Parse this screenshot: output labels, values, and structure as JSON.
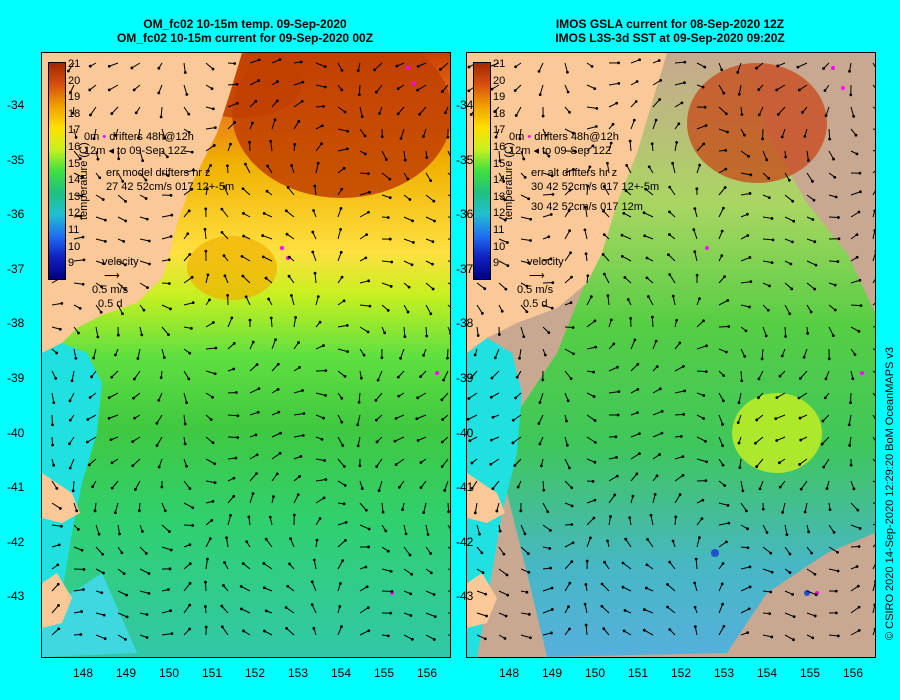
{
  "titles": {
    "left_line1": "OM_fc02 10-15m temp. 09-Sep-2020",
    "left_line2": "OM_fc02 10-15m current for 09-Sep-2020 00Z",
    "right_line1": "IMOS GSLA current for 08-Sep-2020 12Z",
    "right_line2": "IMOS L3S-3d SST at 09-Sep-2020 09:20Z"
  },
  "colorbar": {
    "label": "temperature (C)",
    "ticks": [
      "21",
      "20",
      "19",
      "18",
      "17",
      "16",
      "15",
      "14",
      "13",
      "12",
      "11",
      "10",
      "9"
    ]
  },
  "left_legend": {
    "drifters": "drifters 48h@12h",
    "to_date": "to 09-Sep 12Z",
    "depth_top": "0m",
    "depth_bottom": "12m",
    "err_title": "err model drifters hr z",
    "err_line": "27 42 52cm/s 017 12+-5m"
  },
  "right_legend": {
    "drifters": "drifters 48h@12h",
    "to_date": "to 09-Sep 12Z",
    "depth_top": "0m",
    "depth_bottom": "12m",
    "err_title": "err alt drifters hr z",
    "err_line1": "30 42 52cm/s 017 12+-5m",
    "err_line2": "30 42 52cm/s 017 12m"
  },
  "velocity_legend": {
    "label": "velocity",
    "speed": "0.5 m/s",
    "days": "0.5 d"
  },
  "lat_ticks": [
    "-34",
    "-35",
    "-36",
    "-37",
    "-38",
    "-39",
    "-40",
    "-41",
    "-42",
    "-43"
  ],
  "lon_ticks": [
    "148",
    "149",
    "150",
    "151",
    "152",
    "153",
    "154",
    "155",
    "156"
  ],
  "credit": "© CSIRO 2020   14-Sep-2020 12:29:20 BoM OceanMAPS v3",
  "colors": {
    "background": "#00ffff",
    "land": "#fbc898",
    "nodata": "#c8a890",
    "drifter": "#ff00ff"
  }
}
